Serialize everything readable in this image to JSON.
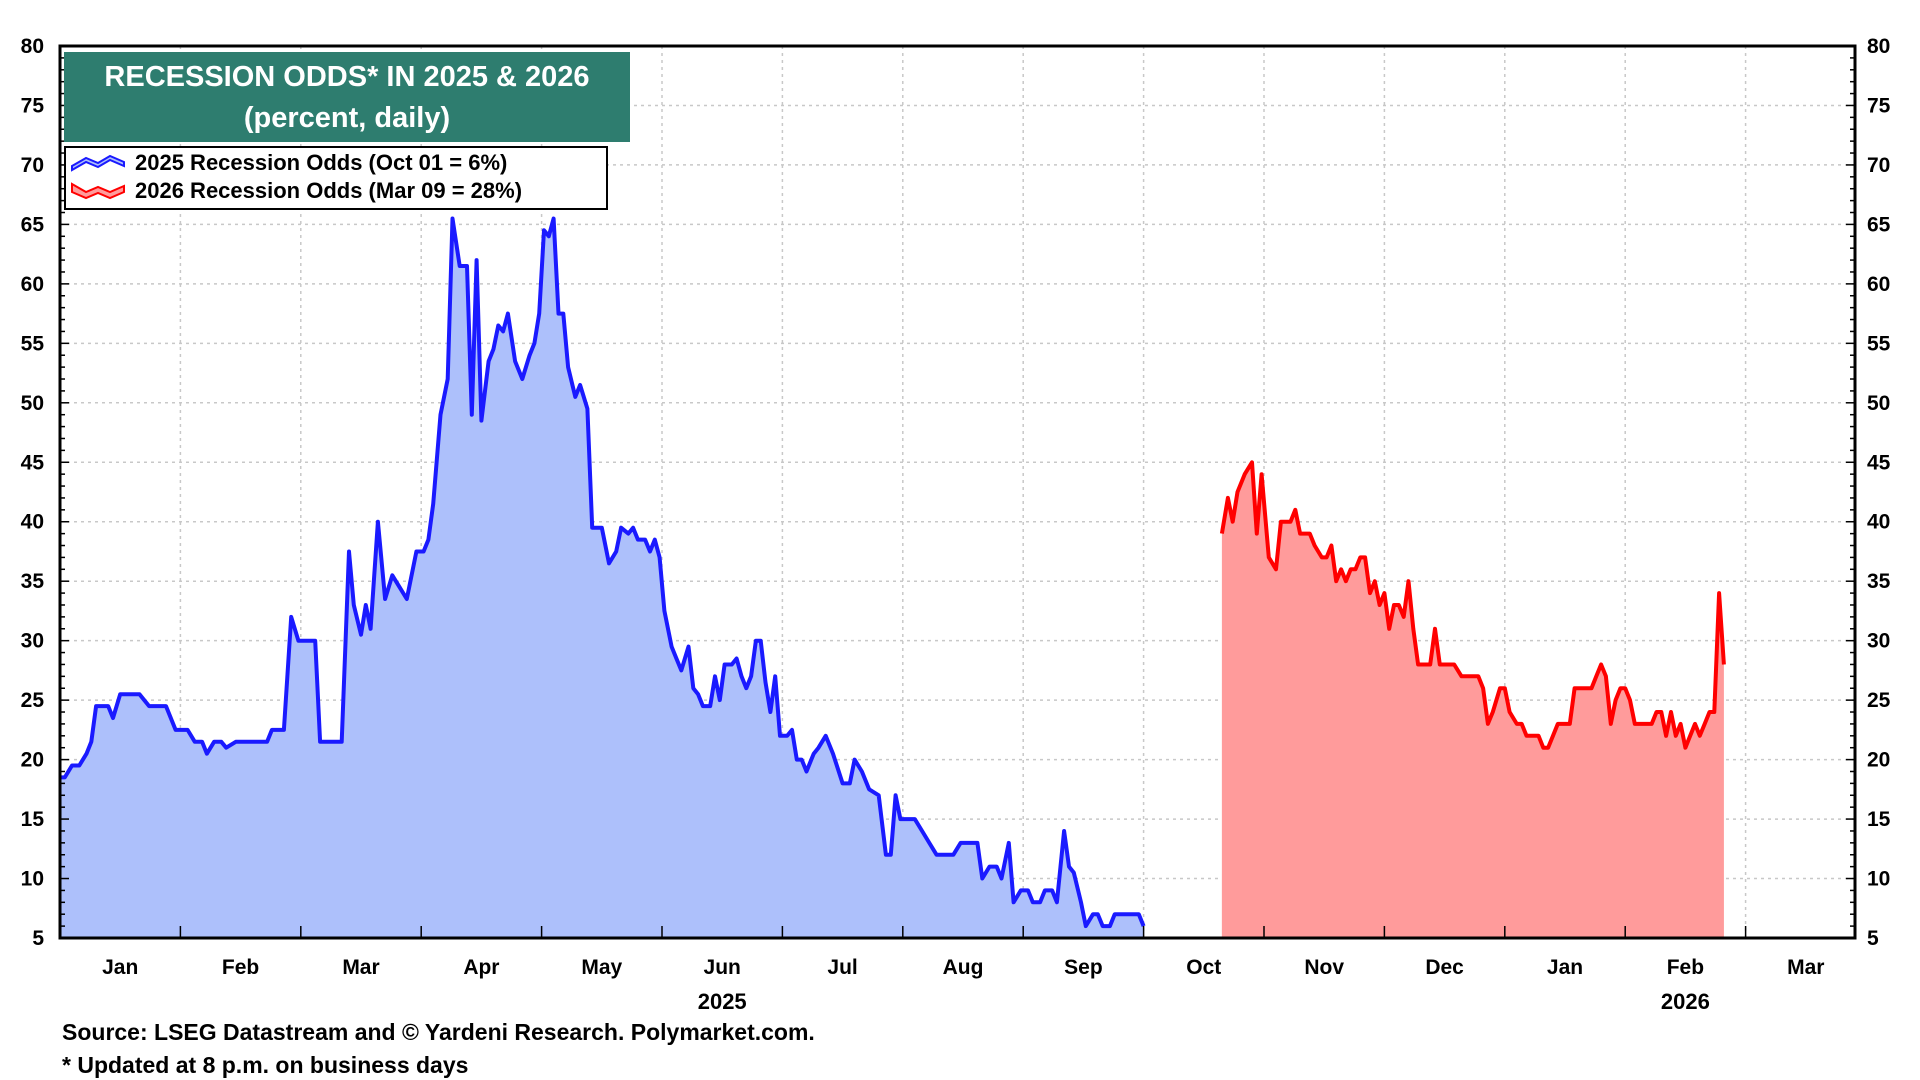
{
  "chart_data": {
    "type": "area",
    "title": "RECESSION ODDS* IN 2025 & 2026",
    "subtitle": "(percent, daily)",
    "title_box_color": "#2e7d6f",
    "ylim": [
      5,
      80
    ],
    "y_ticks": [
      5,
      10,
      15,
      20,
      25,
      30,
      35,
      40,
      45,
      50,
      55,
      60,
      65,
      70,
      75,
      80
    ],
    "x_axis": {
      "months": [
        "Jan",
        "Feb",
        "Mar",
        "Apr",
        "May",
        "Jun",
        "Jul",
        "Aug",
        "Sep",
        "Oct",
        "Nov",
        "Dec",
        "Jan",
        "Feb",
        "Mar"
      ],
      "years": [
        {
          "label": "2025",
          "under_month_index": 5
        },
        {
          "label": "2026",
          "under_month_index": 13
        }
      ]
    },
    "grid": true,
    "legend_position": "top-left",
    "series": [
      {
        "name": "2025 Recession Odds (Oct 01 = 6%)",
        "line_color": "#1a1aff",
        "fill_color": "#adc0fb",
        "points": [
          [
            0.0,
            18.5
          ],
          [
            0.04,
            18.5
          ],
          [
            0.1,
            19.5
          ],
          [
            0.16,
            19.5
          ],
          [
            0.22,
            20.5
          ],
          [
            0.26,
            21.5
          ],
          [
            0.3,
            24.5
          ],
          [
            0.4,
            24.5
          ],
          [
            0.44,
            23.5
          ],
          [
            0.5,
            25.5
          ],
          [
            0.66,
            25.5
          ],
          [
            0.74,
            24.5
          ],
          [
            0.88,
            24.5
          ],
          [
            0.96,
            22.5
          ],
          [
            1.06,
            22.5
          ],
          [
            1.12,
            21.5
          ],
          [
            1.18,
            21.5
          ],
          [
            1.22,
            20.5
          ],
          [
            1.28,
            21.5
          ],
          [
            1.34,
            21.5
          ],
          [
            1.38,
            21.0
          ],
          [
            1.46,
            21.5
          ],
          [
            1.6,
            21.5
          ],
          [
            1.72,
            21.5
          ],
          [
            1.76,
            22.5
          ],
          [
            1.86,
            22.5
          ],
          [
            1.92,
            32.0
          ],
          [
            1.98,
            30.0
          ],
          [
            2.12,
            30.0
          ],
          [
            2.16,
            21.5
          ],
          [
            2.34,
            21.5
          ],
          [
            2.4,
            37.5
          ],
          [
            2.44,
            33.0
          ],
          [
            2.5,
            30.5
          ],
          [
            2.54,
            33.0
          ],
          [
            2.58,
            31.0
          ],
          [
            2.64,
            40.0
          ],
          [
            2.7,
            33.5
          ],
          [
            2.76,
            35.5
          ],
          [
            2.82,
            34.5
          ],
          [
            2.88,
            33.5
          ],
          [
            2.96,
            37.5
          ],
          [
            3.02,
            37.5
          ],
          [
            3.06,
            38.5
          ],
          [
            3.1,
            41.5
          ],
          [
            3.16,
            49.0
          ],
          [
            3.22,
            52.0
          ],
          [
            3.26,
            65.5
          ],
          [
            3.32,
            61.5
          ],
          [
            3.38,
            61.5
          ],
          [
            3.42,
            49.0
          ],
          [
            3.46,
            62.0
          ],
          [
            3.5,
            48.5
          ],
          [
            3.56,
            53.5
          ],
          [
            3.6,
            54.5
          ],
          [
            3.64,
            56.5
          ],
          [
            3.68,
            56.0
          ],
          [
            3.72,
            57.5
          ],
          [
            3.78,
            53.5
          ],
          [
            3.84,
            52.0
          ],
          [
            3.9,
            54.0
          ],
          [
            3.94,
            55.0
          ],
          [
            3.98,
            57.5
          ],
          [
            4.02,
            64.5
          ],
          [
            4.06,
            64.0
          ],
          [
            4.1,
            65.5
          ],
          [
            4.14,
            57.5
          ],
          [
            4.18,
            57.5
          ],
          [
            4.22,
            53.0
          ],
          [
            4.28,
            50.5
          ],
          [
            4.32,
            51.5
          ],
          [
            4.38,
            49.5
          ],
          [
            4.42,
            39.5
          ],
          [
            4.5,
            39.5
          ],
          [
            4.56,
            36.5
          ],
          [
            4.62,
            37.5
          ],
          [
            4.66,
            39.5
          ],
          [
            4.72,
            39.0
          ],
          [
            4.76,
            39.5
          ],
          [
            4.8,
            38.5
          ],
          [
            4.86,
            38.5
          ],
          [
            4.9,
            37.5
          ],
          [
            4.94,
            38.5
          ],
          [
            4.98,
            37.0
          ],
          [
            5.02,
            32.5
          ],
          [
            5.08,
            29.5
          ],
          [
            5.12,
            28.5
          ],
          [
            5.16,
            27.5
          ],
          [
            5.22,
            29.5
          ],
          [
            5.26,
            26.0
          ],
          [
            5.3,
            25.5
          ],
          [
            5.34,
            24.5
          ],
          [
            5.4,
            24.5
          ],
          [
            5.44,
            27.0
          ],
          [
            5.48,
            25.0
          ],
          [
            5.52,
            28.0
          ],
          [
            5.58,
            28.0
          ],
          [
            5.62,
            28.5
          ],
          [
            5.66,
            27.0
          ],
          [
            5.7,
            26.0
          ],
          [
            5.74,
            27.0
          ],
          [
            5.78,
            30.0
          ],
          [
            5.82,
            30.0
          ],
          [
            5.86,
            26.5
          ],
          [
            5.9,
            24.0
          ],
          [
            5.94,
            27.0
          ],
          [
            5.98,
            22.0
          ],
          [
            6.04,
            22.0
          ],
          [
            6.08,
            22.5
          ],
          [
            6.12,
            20.0
          ],
          [
            6.16,
            20.0
          ],
          [
            6.2,
            19.0
          ],
          [
            6.26,
            20.5
          ],
          [
            6.3,
            21.0
          ],
          [
            6.36,
            22.0
          ],
          [
            6.42,
            20.5
          ],
          [
            6.5,
            18.0
          ],
          [
            6.56,
            18.0
          ],
          [
            6.6,
            20.0
          ],
          [
            6.66,
            19.0
          ],
          [
            6.72,
            17.5
          ],
          [
            6.8,
            17.0
          ],
          [
            6.86,
            12.0
          ],
          [
            6.9,
            12.0
          ],
          [
            6.94,
            17.0
          ],
          [
            6.98,
            15.0
          ],
          [
            7.02,
            15.0
          ],
          [
            7.1,
            15.0
          ],
          [
            7.16,
            14.0
          ],
          [
            7.22,
            13.0
          ],
          [
            7.28,
            12.0
          ],
          [
            7.36,
            12.0
          ],
          [
            7.42,
            12.0
          ],
          [
            7.48,
            13.0
          ],
          [
            7.56,
            13.0
          ],
          [
            7.62,
            13.0
          ],
          [
            7.66,
            10.0
          ],
          [
            7.72,
            11.0
          ],
          [
            7.78,
            11.0
          ],
          [
            7.82,
            10.0
          ],
          [
            7.88,
            13.0
          ],
          [
            7.92,
            8.0
          ],
          [
            7.98,
            9.0
          ],
          [
            8.04,
            9.0
          ],
          [
            8.08,
            8.0
          ],
          [
            8.14,
            8.0
          ],
          [
            8.18,
            9.0
          ],
          [
            8.24,
            9.0
          ],
          [
            8.28,
            8.0
          ],
          [
            8.34,
            14.0
          ],
          [
            8.38,
            11.0
          ],
          [
            8.42,
            10.5
          ],
          [
            8.48,
            8.0
          ],
          [
            8.52,
            6.0
          ],
          [
            8.58,
            7.0
          ],
          [
            8.62,
            7.0
          ],
          [
            8.66,
            6.0
          ],
          [
            8.72,
            6.0
          ],
          [
            8.76,
            7.0
          ],
          [
            8.8,
            7.0
          ],
          [
            8.86,
            7.0
          ],
          [
            8.92,
            7.0
          ],
          [
            8.96,
            7.0
          ],
          [
            9.0,
            6.0
          ]
        ]
      },
      {
        "name": "2026 Recession Odds (Mar 09 = 28%)",
        "line_color": "#ff0000",
        "fill_color": "#ff9b9b",
        "points": [
          [
            9.65,
            39.0
          ],
          [
            9.7,
            42.0
          ],
          [
            9.74,
            40.0
          ],
          [
            9.78,
            42.5
          ],
          [
            9.84,
            44.0
          ],
          [
            9.9,
            45.0
          ],
          [
            9.94,
            39.0
          ],
          [
            9.98,
            44.0
          ],
          [
            10.04,
            37.0
          ],
          [
            10.1,
            36.0
          ],
          [
            10.14,
            40.0
          ],
          [
            10.22,
            40.0
          ],
          [
            10.26,
            41.0
          ],
          [
            10.3,
            39.0
          ],
          [
            10.38,
            39.0
          ],
          [
            10.42,
            38.0
          ],
          [
            10.48,
            37.0
          ],
          [
            10.52,
            37.0
          ],
          [
            10.56,
            38.0
          ],
          [
            10.6,
            35.0
          ],
          [
            10.64,
            36.0
          ],
          [
            10.68,
            35.0
          ],
          [
            10.72,
            36.0
          ],
          [
            10.76,
            36.0
          ],
          [
            10.8,
            37.0
          ],
          [
            10.84,
            37.0
          ],
          [
            10.88,
            34.0
          ],
          [
            10.92,
            35.0
          ],
          [
            10.96,
            33.0
          ],
          [
            11.0,
            34.0
          ],
          [
            11.04,
            31.0
          ],
          [
            11.08,
            33.0
          ],
          [
            11.12,
            33.0
          ],
          [
            11.16,
            32.0
          ],
          [
            11.2,
            35.0
          ],
          [
            11.24,
            31.0
          ],
          [
            11.28,
            28.0
          ],
          [
            11.34,
            28.0
          ],
          [
            11.38,
            28.0
          ],
          [
            11.42,
            31.0
          ],
          [
            11.46,
            28.0
          ],
          [
            11.52,
            28.0
          ],
          [
            11.58,
            28.0
          ],
          [
            11.64,
            27.0
          ],
          [
            11.7,
            27.0
          ],
          [
            11.78,
            27.0
          ],
          [
            11.82,
            26.0
          ],
          [
            11.86,
            23.0
          ],
          [
            11.9,
            24.0
          ],
          [
            11.96,
            26.0
          ],
          [
            12.0,
            26.0
          ],
          [
            12.04,
            24.0
          ],
          [
            12.1,
            23.0
          ],
          [
            12.14,
            23.0
          ],
          [
            12.18,
            22.0
          ],
          [
            12.24,
            22.0
          ],
          [
            12.28,
            22.0
          ],
          [
            12.32,
            21.0
          ],
          [
            12.36,
            21.0
          ],
          [
            12.4,
            22.0
          ],
          [
            12.44,
            23.0
          ],
          [
            12.5,
            23.0
          ],
          [
            12.54,
            23.0
          ],
          [
            12.58,
            26.0
          ],
          [
            12.64,
            26.0
          ],
          [
            12.68,
            26.0
          ],
          [
            12.72,
            26.0
          ],
          [
            12.76,
            27.0
          ],
          [
            12.8,
            28.0
          ],
          [
            12.84,
            27.0
          ],
          [
            12.88,
            23.0
          ],
          [
            12.92,
            25.0
          ],
          [
            12.96,
            26.0
          ],
          [
            13.0,
            26.0
          ],
          [
            13.04,
            25.0
          ],
          [
            13.08,
            23.0
          ],
          [
            13.14,
            23.0
          ],
          [
            13.18,
            23.0
          ],
          [
            13.22,
            23.0
          ],
          [
            13.26,
            24.0
          ],
          [
            13.3,
            24.0
          ],
          [
            13.34,
            22.0
          ],
          [
            13.38,
            24.0
          ],
          [
            13.42,
            22.0
          ],
          [
            13.46,
            23.0
          ],
          [
            13.5,
            21.0
          ],
          [
            13.54,
            22.0
          ],
          [
            13.58,
            23.0
          ],
          [
            13.62,
            22.0
          ],
          [
            13.66,
            23.0
          ],
          [
            13.7,
            24.0
          ],
          [
            13.74,
            24.0
          ],
          [
            13.78,
            34.0
          ],
          [
            13.82,
            28.0
          ]
        ]
      }
    ]
  },
  "footer": {
    "source": "Source: LSEG Datastream and © Yardeni Research. Polymarket.com.",
    "note": "* Updated at 8 p.m. on business days"
  }
}
